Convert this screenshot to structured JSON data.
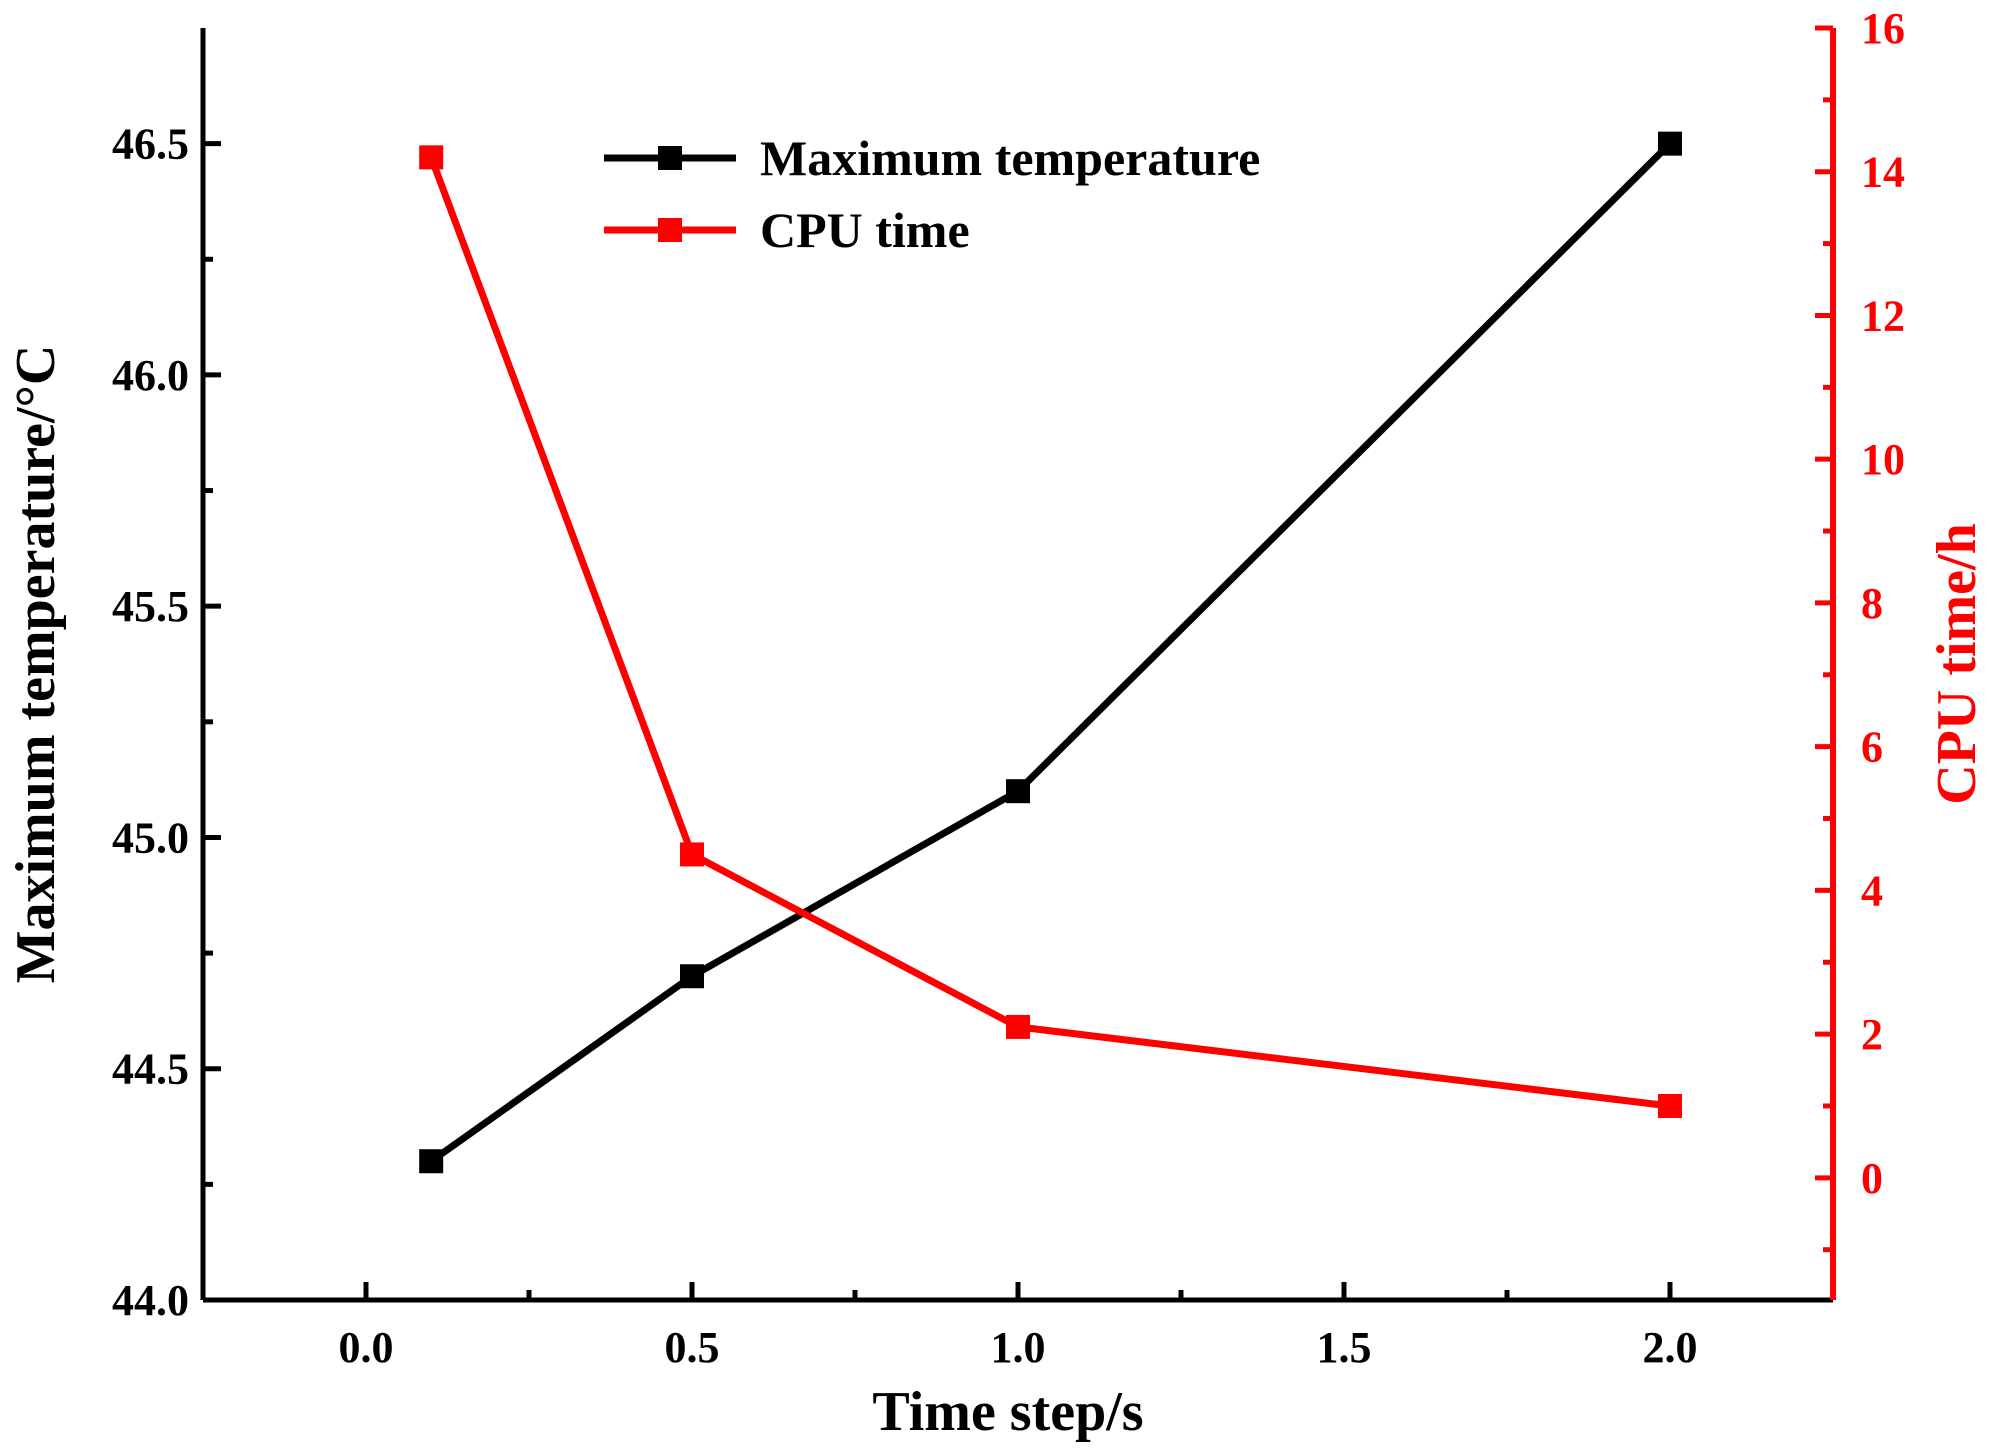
{
  "chart_data": {
    "type": "line",
    "x": [
      0.1,
      0.5,
      1.0,
      2.0
    ],
    "xlabel": "Time step/s",
    "xlim": [
      -0.25,
      2.25
    ],
    "xticks": [
      "0.0",
      "0.5",
      "1.0",
      "1.5",
      "2.0"
    ],
    "ylabel_left": "Maximum temperature/°C",
    "ylim_left": [
      44.0,
      46.75
    ],
    "yticks_left": [
      "44.0",
      "44.5",
      "45.0",
      "45.5",
      "46.0",
      "46.5"
    ],
    "ylabel_right": "CPU time/h",
    "ylim_right": [
      -1.7,
      16
    ],
    "yticks_right": [
      "0",
      "2",
      "4",
      "6",
      "8",
      "10",
      "12",
      "14",
      "16"
    ],
    "legend_position": "top-center",
    "series": [
      {
        "name": "Maximum temperature",
        "axis": "left",
        "color": "#000000",
        "marker": "square",
        "values": [
          44.3,
          44.7,
          45.1,
          46.5
        ]
      },
      {
        "name": "CPU time",
        "axis": "right",
        "color": "#ff0000",
        "marker": "square",
        "values": [
          14.2,
          4.5,
          2.1,
          1.0
        ]
      }
    ]
  }
}
